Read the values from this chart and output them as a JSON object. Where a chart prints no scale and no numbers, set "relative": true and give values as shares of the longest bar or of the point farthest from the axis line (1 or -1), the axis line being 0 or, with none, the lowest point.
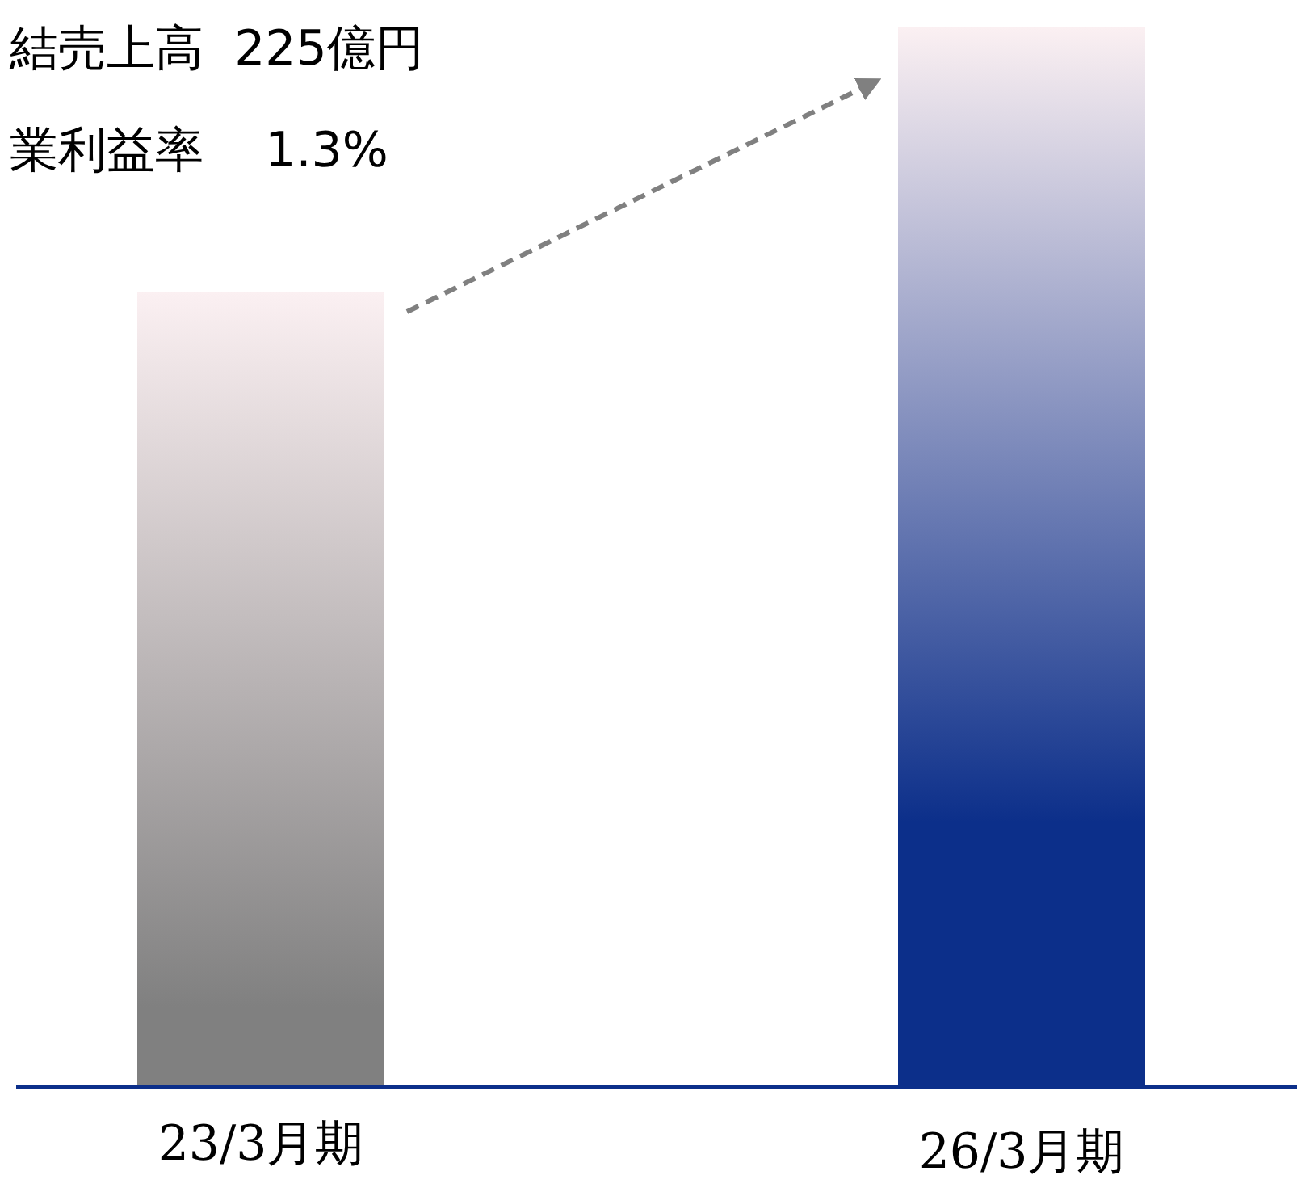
{
  "chart_data": {
    "type": "bar",
    "relative": true,
    "categories": [
      "23/3月期",
      "26/3月期"
    ],
    "values": [
      0.75,
      1
    ],
    "colors": [
      "#808080",
      "#0c2f8a"
    ],
    "annotations": [
      "結売上高  225億円",
      "業利益率    1.3%"
    ]
  }
}
